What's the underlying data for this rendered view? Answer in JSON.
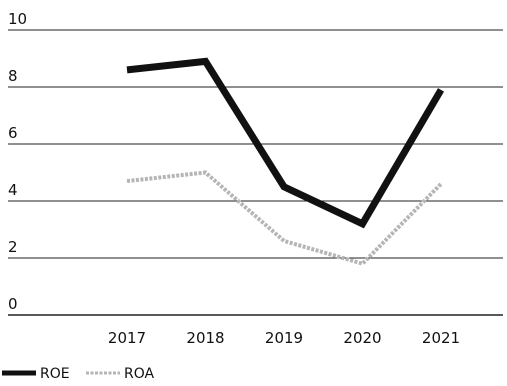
{
  "chart_data": {
    "type": "line",
    "title": "",
    "xlabel": "",
    "ylabel": "",
    "categories": [
      "2017",
      "2018",
      "2019",
      "2020",
      "2021"
    ],
    "ylim": [
      0,
      10
    ],
    "yticks": [
      "0",
      "2",
      "4",
      "6",
      "8",
      "10"
    ],
    "grid": true,
    "legend_position": "bottom-left",
    "series": [
      {
        "name": "ROE",
        "values": [
          8.6,
          8.9,
          4.5,
          3.2,
          7.9
        ],
        "color": "#111111",
        "style": "solid-thick"
      },
      {
        "name": "ROA",
        "values": [
          4.7,
          5.0,
          2.6,
          1.8,
          4.6
        ],
        "color": "#b5b5b5",
        "style": "hatched-thin"
      }
    ]
  }
}
